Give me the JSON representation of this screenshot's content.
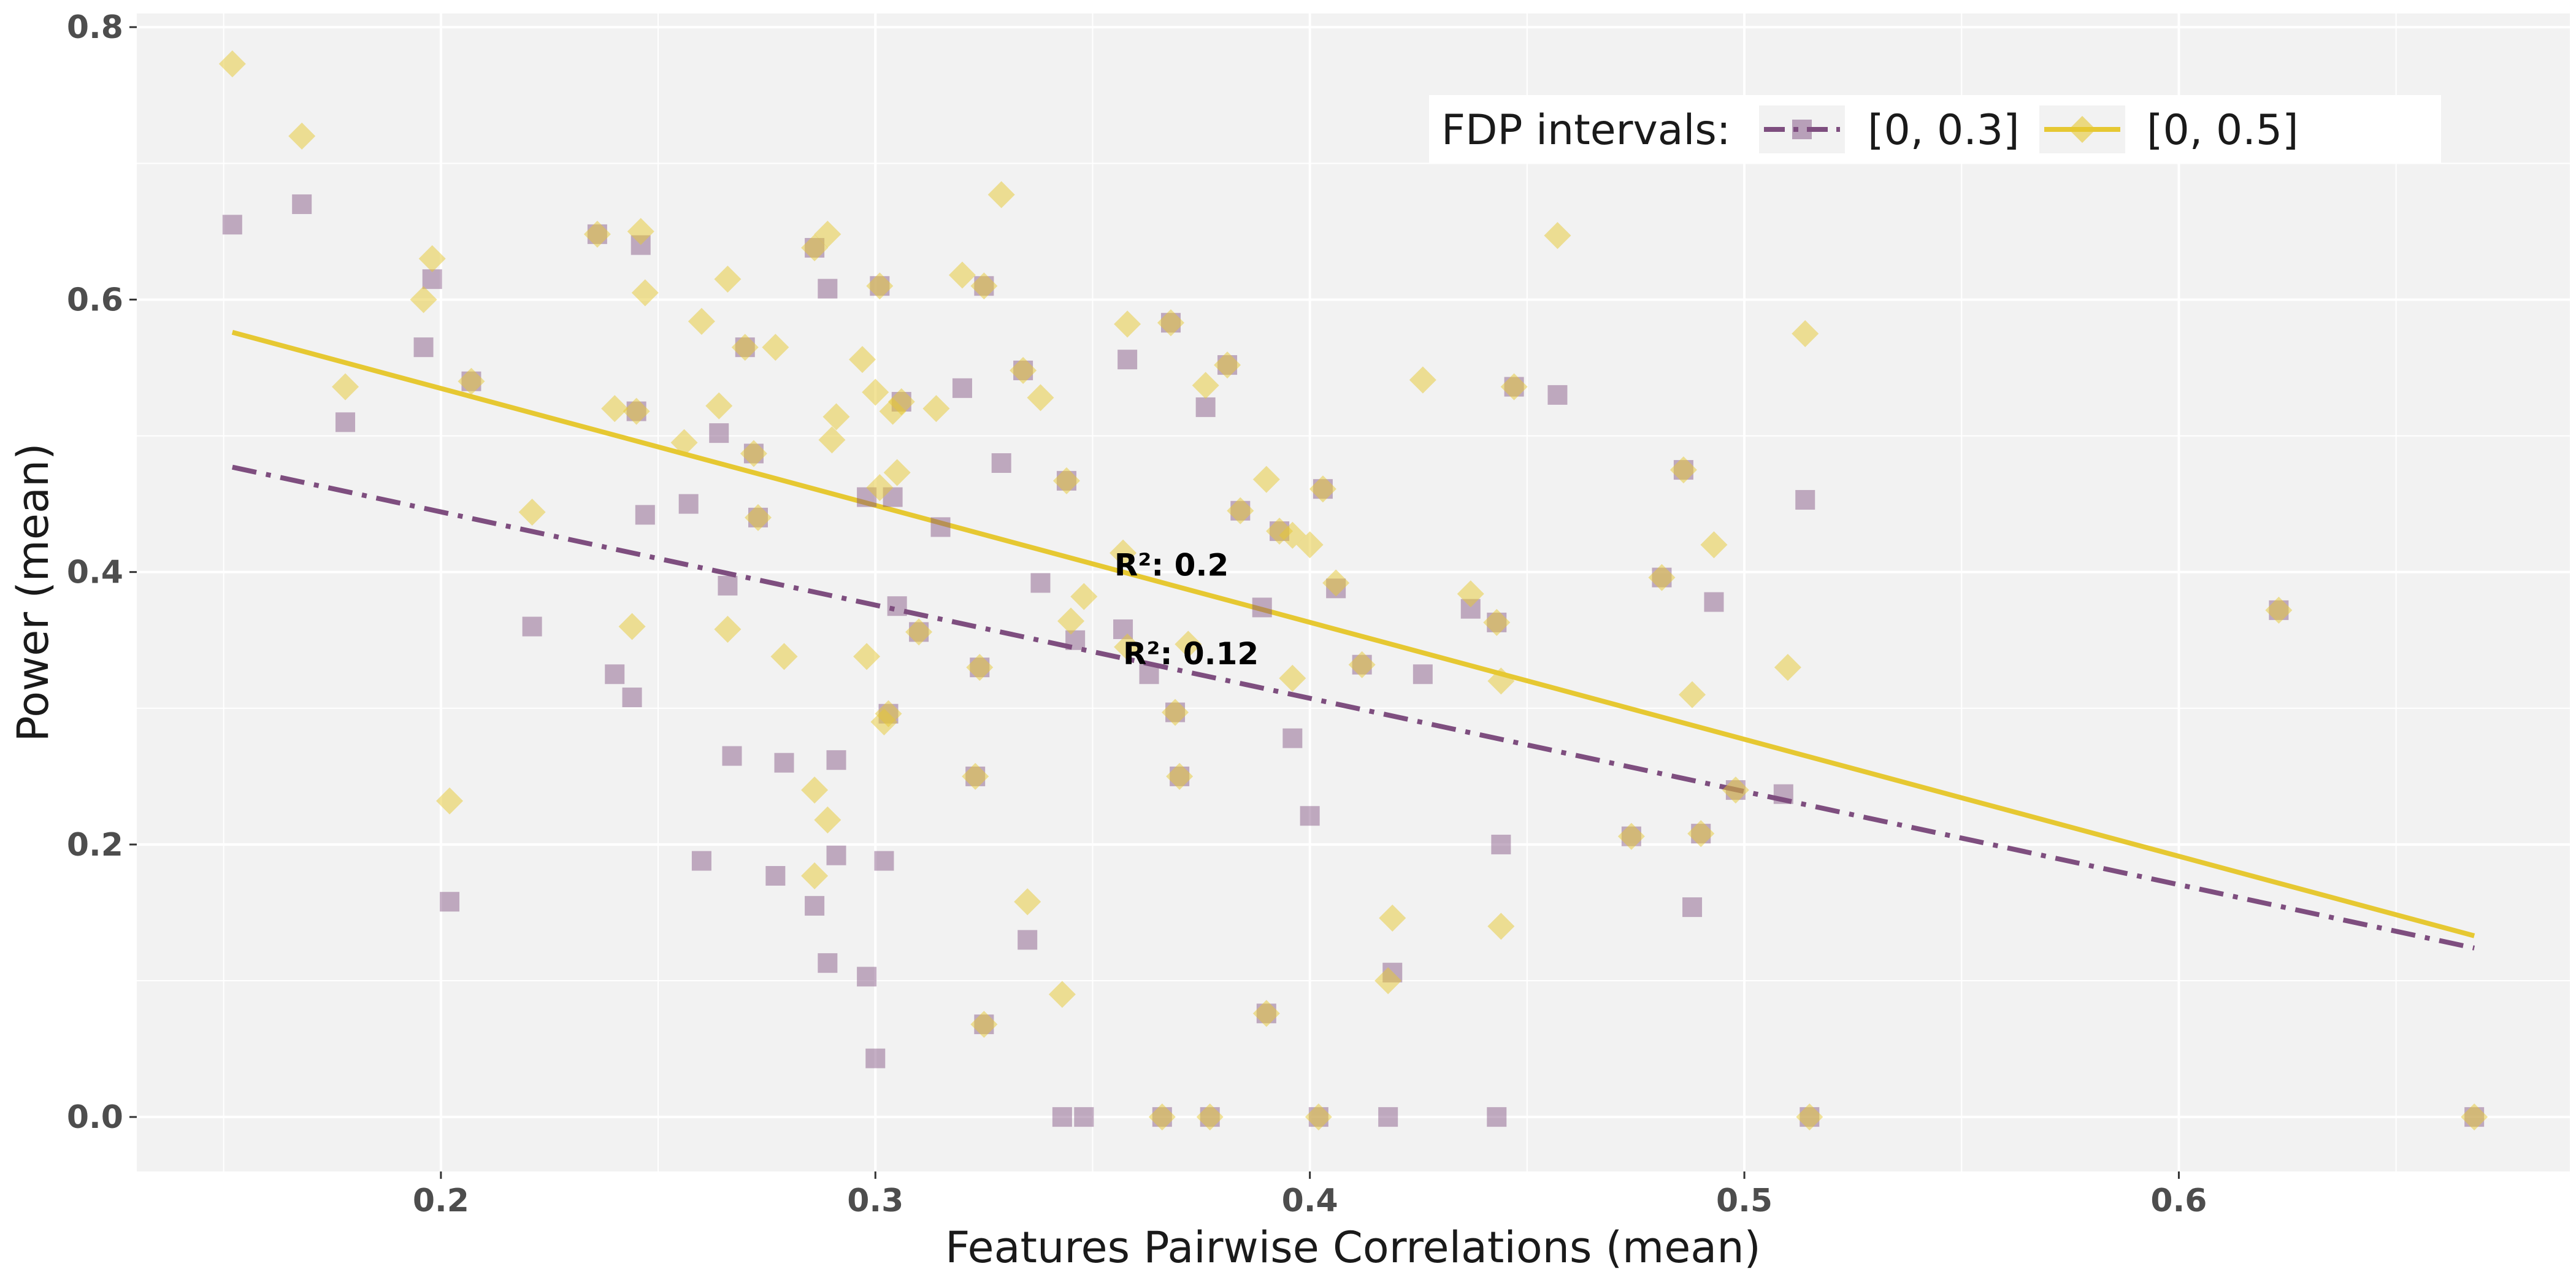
{
  "chart_data": {
    "type": "scatter",
    "xlabel": "Features Pairwise Correlations (mean)",
    "ylabel": "Power (mean)",
    "xlim": [
      0.13,
      0.69
    ],
    "ylim": [
      -0.04,
      0.81
    ],
    "x_ticks": [
      "0.2",
      "0.3",
      "0.4",
      "0.5",
      "0.6"
    ],
    "y_ticks": [
      "0.0",
      "0.2",
      "0.4",
      "0.6",
      "0.8"
    ],
    "grid": true,
    "legend": {
      "title": "FDP intervals:",
      "position": "top-right",
      "entries": [
        {
          "label": "[0, 0.3]",
          "marker": "square",
          "line": "dashdot",
          "color": "#7e4e7f"
        },
        {
          "label": "[0, 0.5]",
          "marker": "diamond",
          "line": "solid",
          "color": "#e6c832"
        }
      ]
    },
    "annotations": [
      {
        "text": "R²: 0.2",
        "x": 0.355,
        "y": 0.405
      },
      {
        "text": "R²: 0.12",
        "x": 0.357,
        "y": 0.34
      }
    ],
    "series": [
      {
        "name": "[0, 0.3]",
        "color": "#7e4e7f",
        "marker": "square",
        "trend": {
          "x": [
            0.152,
            0.668
          ],
          "y": [
            0.477,
            0.124
          ],
          "style": "dashdot"
        },
        "points": [
          [
            0.152,
            0.655
          ],
          [
            0.168,
            0.67
          ],
          [
            0.178,
            0.51
          ],
          [
            0.196,
            0.565
          ],
          [
            0.198,
            0.615
          ],
          [
            0.207,
            0.54
          ],
          [
            0.202,
            0.158
          ],
          [
            0.221,
            0.36
          ],
          [
            0.236,
            0.648
          ],
          [
            0.24,
            0.325
          ],
          [
            0.244,
            0.308
          ],
          [
            0.245,
            0.518
          ],
          [
            0.246,
            0.64
          ],
          [
            0.247,
            0.442
          ],
          [
            0.257,
            0.45
          ],
          [
            0.26,
            0.188
          ],
          [
            0.264,
            0.502
          ],
          [
            0.266,
            0.39
          ],
          [
            0.267,
            0.265
          ],
          [
            0.27,
            0.565
          ],
          [
            0.273,
            0.44
          ],
          [
            0.272,
            0.487
          ],
          [
            0.277,
            0.177
          ],
          [
            0.279,
            0.26
          ],
          [
            0.286,
            0.638
          ],
          [
            0.286,
            0.155
          ],
          [
            0.289,
            0.608
          ],
          [
            0.289,
            0.113
          ],
          [
            0.291,
            0.262
          ],
          [
            0.291,
            0.192
          ],
          [
            0.298,
            0.455
          ],
          [
            0.298,
            0.103
          ],
          [
            0.3,
            0.043
          ],
          [
            0.301,
            0.61
          ],
          [
            0.302,
            0.188
          ],
          [
            0.303,
            0.296
          ],
          [
            0.304,
            0.455
          ],
          [
            0.305,
            0.375
          ],
          [
            0.306,
            0.525
          ],
          [
            0.31,
            0.356
          ],
          [
            0.315,
            0.433
          ],
          [
            0.32,
            0.535
          ],
          [
            0.324,
            0.33
          ],
          [
            0.325,
            0.61
          ],
          [
            0.323,
            0.25
          ],
          [
            0.325,
            0.068
          ],
          [
            0.329,
            0.48
          ],
          [
            0.334,
            0.548
          ],
          [
            0.335,
            0.13
          ],
          [
            0.338,
            0.392
          ],
          [
            0.344,
            0.467
          ],
          [
            0.343,
            0.0
          ],
          [
            0.346,
            0.35
          ],
          [
            0.348,
            0.0
          ],
          [
            0.357,
            0.358
          ],
          [
            0.358,
            0.556
          ],
          [
            0.363,
            0.325
          ],
          [
            0.366,
            0.0
          ],
          [
            0.368,
            0.583
          ],
          [
            0.369,
            0.297
          ],
          [
            0.37,
            0.25
          ],
          [
            0.376,
            0.521
          ],
          [
            0.377,
            0.0
          ],
          [
            0.381,
            0.552
          ],
          [
            0.384,
            0.445
          ],
          [
            0.389,
            0.374
          ],
          [
            0.39,
            0.076
          ],
          [
            0.393,
            0.43
          ],
          [
            0.396,
            0.278
          ],
          [
            0.4,
            0.221
          ],
          [
            0.402,
            0.0
          ],
          [
            0.403,
            0.461
          ],
          [
            0.406,
            0.388
          ],
          [
            0.412,
            0.332
          ],
          [
            0.418,
            0.0
          ],
          [
            0.419,
            0.106
          ],
          [
            0.426,
            0.325
          ],
          [
            0.437,
            0.373
          ],
          [
            0.443,
            0.363
          ],
          [
            0.444,
            0.2
          ],
          [
            0.443,
            0.0
          ],
          [
            0.447,
            0.536
          ],
          [
            0.457,
            0.53
          ],
          [
            0.474,
            0.206
          ],
          [
            0.481,
            0.396
          ],
          [
            0.486,
            0.475
          ],
          [
            0.488,
            0.154
          ],
          [
            0.49,
            0.208
          ],
          [
            0.493,
            0.378
          ],
          [
            0.498,
            0.24
          ],
          [
            0.509,
            0.237
          ],
          [
            0.514,
            0.453
          ],
          [
            0.515,
            0.0
          ],
          [
            0.623,
            0.372
          ],
          [
            0.668,
            0.0
          ]
        ]
      },
      {
        "name": "[0, 0.5]",
        "color": "#e6c832",
        "marker": "diamond",
        "trend": {
          "x": [
            0.152,
            0.668
          ],
          "y": [
            0.576,
            0.133
          ],
          "style": "solid"
        },
        "points": [
          [
            0.152,
            0.773
          ],
          [
            0.168,
            0.72
          ],
          [
            0.178,
            0.536
          ],
          [
            0.196,
            0.6
          ],
          [
            0.198,
            0.63
          ],
          [
            0.202,
            0.232
          ],
          [
            0.207,
            0.54
          ],
          [
            0.221,
            0.444
          ],
          [
            0.236,
            0.648
          ],
          [
            0.24,
            0.52
          ],
          [
            0.244,
            0.36
          ],
          [
            0.245,
            0.518
          ],
          [
            0.246,
            0.65
          ],
          [
            0.247,
            0.605
          ],
          [
            0.256,
            0.495
          ],
          [
            0.26,
            0.584
          ],
          [
            0.264,
            0.522
          ],
          [
            0.266,
            0.615
          ],
          [
            0.266,
            0.358
          ],
          [
            0.27,
            0.565
          ],
          [
            0.272,
            0.487
          ],
          [
            0.273,
            0.44
          ],
          [
            0.277,
            0.565
          ],
          [
            0.279,
            0.338
          ],
          [
            0.286,
            0.638
          ],
          [
            0.286,
            0.24
          ],
          [
            0.286,
            0.177
          ],
          [
            0.289,
            0.648
          ],
          [
            0.289,
            0.218
          ],
          [
            0.29,
            0.497
          ],
          [
            0.291,
            0.514
          ],
          [
            0.297,
            0.556
          ],
          [
            0.298,
            0.338
          ],
          [
            0.3,
            0.532
          ],
          [
            0.301,
            0.462
          ],
          [
            0.301,
            0.61
          ],
          [
            0.302,
            0.29
          ],
          [
            0.303,
            0.296
          ],
          [
            0.304,
            0.518
          ],
          [
            0.305,
            0.473
          ],
          [
            0.306,
            0.525
          ],
          [
            0.31,
            0.356
          ],
          [
            0.314,
            0.52
          ],
          [
            0.32,
            0.618
          ],
          [
            0.323,
            0.25
          ],
          [
            0.324,
            0.33
          ],
          [
            0.325,
            0.61
          ],
          [
            0.325,
            0.068
          ],
          [
            0.329,
            0.677
          ],
          [
            0.334,
            0.548
          ],
          [
            0.335,
            0.158
          ],
          [
            0.338,
            0.528
          ],
          [
            0.343,
            0.09
          ],
          [
            0.344,
            0.467
          ],
          [
            0.345,
            0.364
          ],
          [
            0.348,
            0.382
          ],
          [
            0.357,
            0.414
          ],
          [
            0.358,
            0.582
          ],
          [
            0.358,
            0.345
          ],
          [
            0.366,
            0.0
          ],
          [
            0.368,
            0.583
          ],
          [
            0.369,
            0.297
          ],
          [
            0.37,
            0.25
          ],
          [
            0.372,
            0.347
          ],
          [
            0.376,
            0.537
          ],
          [
            0.377,
            0.0
          ],
          [
            0.381,
            0.552
          ],
          [
            0.384,
            0.445
          ],
          [
            0.39,
            0.468
          ],
          [
            0.39,
            0.076
          ],
          [
            0.393,
            0.43
          ],
          [
            0.396,
            0.427
          ],
          [
            0.396,
            0.322
          ],
          [
            0.4,
            0.42
          ],
          [
            0.402,
            0.0
          ],
          [
            0.403,
            0.461
          ],
          [
            0.406,
            0.392
          ],
          [
            0.412,
            0.332
          ],
          [
            0.418,
            0.1
          ],
          [
            0.419,
            0.146
          ],
          [
            0.426,
            0.541
          ],
          [
            0.437,
            0.384
          ],
          [
            0.443,
            0.363
          ],
          [
            0.444,
            0.32
          ],
          [
            0.444,
            0.14
          ],
          [
            0.447,
            0.536
          ],
          [
            0.457,
            0.647
          ],
          [
            0.474,
            0.206
          ],
          [
            0.481,
            0.396
          ],
          [
            0.486,
            0.475
          ],
          [
            0.488,
            0.31
          ],
          [
            0.49,
            0.208
          ],
          [
            0.493,
            0.42
          ],
          [
            0.498,
            0.24
          ],
          [
            0.51,
            0.33
          ],
          [
            0.514,
            0.575
          ],
          [
            0.515,
            0.0
          ],
          [
            0.623,
            0.372
          ],
          [
            0.668,
            0.0
          ]
        ]
      }
    ]
  }
}
